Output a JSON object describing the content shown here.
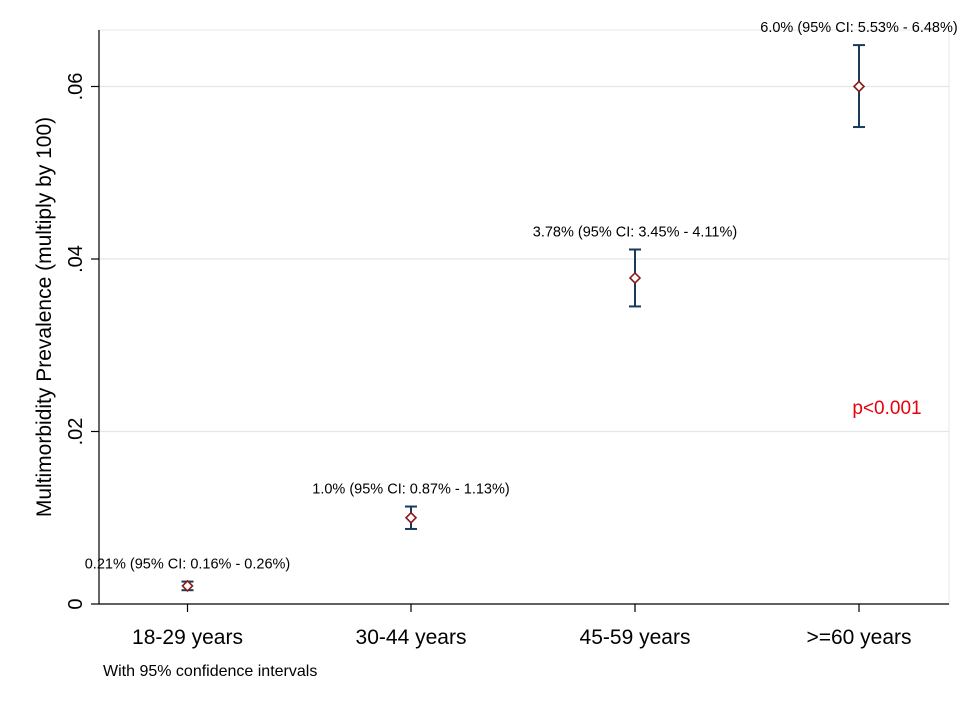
{
  "chart_data": {
    "type": "scatter",
    "ylabel": "Multimorbidity Prevalence (multiply by 100)",
    "note": "With 95% confidence intervals",
    "annotation": "p<0.001",
    "categories": [
      "18-29 years",
      "30-44 years",
      "45-59 years",
      ">=60 years"
    ],
    "points": [
      {
        "value": 0.0021,
        "ci_low": 0.0016,
        "ci_high": 0.0026,
        "label": "0.21% (95% CI: 0.16% - 0.26%)"
      },
      {
        "value": 0.01,
        "ci_low": 0.0087,
        "ci_high": 0.0113,
        "label": "1.0% (95% CI: 0.87% - 1.13%)"
      },
      {
        "value": 0.0378,
        "ci_low": 0.0345,
        "ci_high": 0.0411,
        "label": "3.78% (95% CI: 3.45% - 4.11%)"
      },
      {
        "value": 0.06,
        "ci_low": 0.0553,
        "ci_high": 0.0648,
        "label": "6.0% (95% CI: 5.53% - 6.48%)"
      }
    ],
    "yticks": [
      0,
      0.02,
      0.04,
      0.06
    ],
    "ytick_labels": [
      "0",
      ".02",
      ".04",
      ".06"
    ],
    "ylim": [
      0,
      0.0665
    ],
    "grid": true,
    "colors": {
      "marker": "#8b1a1a",
      "errorbar": "#1a3a5c",
      "annotation": "#e8000b",
      "grid": "#e2e8ea",
      "axis": "#000000"
    }
  }
}
